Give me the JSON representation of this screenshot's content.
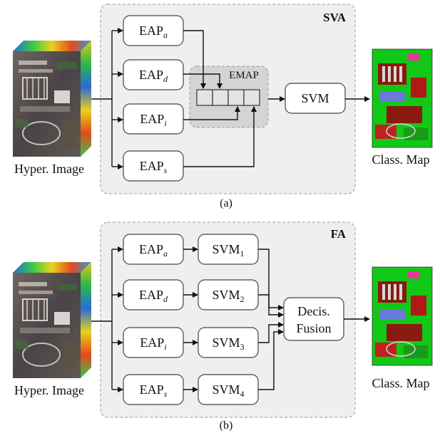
{
  "panel_a": {
    "title": "SVA",
    "caption": "(a)",
    "input_label": "Hyper. Image",
    "output_label": "Class. Map",
    "eap_boxes": [
      {
        "base": "EAP",
        "sub": "a"
      },
      {
        "base": "EAP",
        "sub": "d"
      },
      {
        "base": "EAP",
        "sub": "i"
      },
      {
        "base": "EAP",
        "sub": "s"
      }
    ],
    "emap_label": "EMAP",
    "svm_label": "SVM"
  },
  "panel_b": {
    "title": "FA",
    "caption": "(b)",
    "input_label": "Hyper. Image",
    "output_label": "Class. Map",
    "eap_boxes": [
      {
        "base": "EAP",
        "sub": "a"
      },
      {
        "base": "EAP",
        "sub": "d"
      },
      {
        "base": "EAP",
        "sub": "i"
      },
      {
        "base": "EAP",
        "sub": "s"
      }
    ],
    "svm_boxes": [
      {
        "base": "SVM",
        "sub": "1"
      },
      {
        "base": "SVM",
        "sub": "2"
      },
      {
        "base": "SVM",
        "sub": "3"
      },
      {
        "base": "SVM",
        "sub": "4"
      }
    ],
    "fusion_line1": "Decis.",
    "fusion_line2": "Fusion"
  },
  "colors": {
    "panel_fill": "#efefef",
    "panel_stroke": "#9a9a9a",
    "emap_fill": "#d4d4d4",
    "box_fill": "#ffffff",
    "box_stroke": "#444444",
    "arrow": "#111111"
  }
}
